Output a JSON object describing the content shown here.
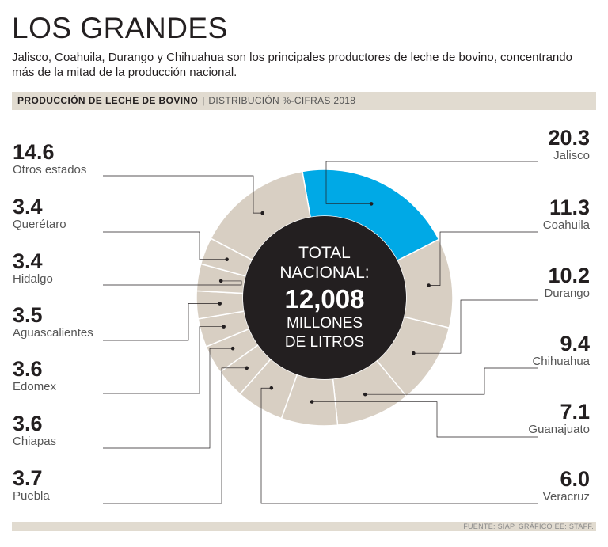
{
  "header": {
    "title": "LOS GRANDES",
    "subtitle": "Jalisco, Coahuila, Durango y Chihuahua son los principales productores de leche de bovino, concentrando más de la mitad de la producción nacional.",
    "band_bold": "PRODUCCIÓN DE LECHE DE BOVINO",
    "band_separator": "|",
    "band_normal": "DISTRIBUCIÓN %-CIFRAS 2018"
  },
  "center": {
    "line1": "TOTAL",
    "line2": "NACIONAL:",
    "value": "12,008",
    "line3": "MILLONES",
    "line4": "DE LITROS"
  },
  "footer": {
    "source": "FUENTE: SIAP. GRÁFICO EE: STAFF."
  },
  "colors": {
    "highlight": "#00a9e6",
    "slice": "#d8cfc3",
    "center": "#231f20",
    "line": "#231f20"
  },
  "chart_data": {
    "type": "pie",
    "title": "Producción de leche de bovino",
    "subtitle": "Distribución %-Cifras 2018",
    "total": "12,008 millones de litros",
    "categories": [
      "Jalisco",
      "Coahuila",
      "Durango",
      "Chihuahua",
      "Guanajuato",
      "Veracruz",
      "Puebla",
      "Chiapas",
      "Edomex",
      "Aguascalientes",
      "Hidalgo",
      "Querétaro",
      "Otros estados"
    ],
    "values": [
      20.3,
      11.3,
      10.2,
      9.4,
      7.1,
      6.0,
      3.7,
      3.6,
      3.6,
      3.5,
      3.4,
      3.4,
      14.6
    ],
    "value_labels": [
      "20.3",
      "11.3",
      "10.2",
      "9.4",
      "7.1",
      "6.0",
      "3.7",
      "3.6",
      "3.6",
      "3.5",
      "3.4",
      "3.4",
      "14.6"
    ],
    "highlight": "Jalisco",
    "unit": "%"
  }
}
